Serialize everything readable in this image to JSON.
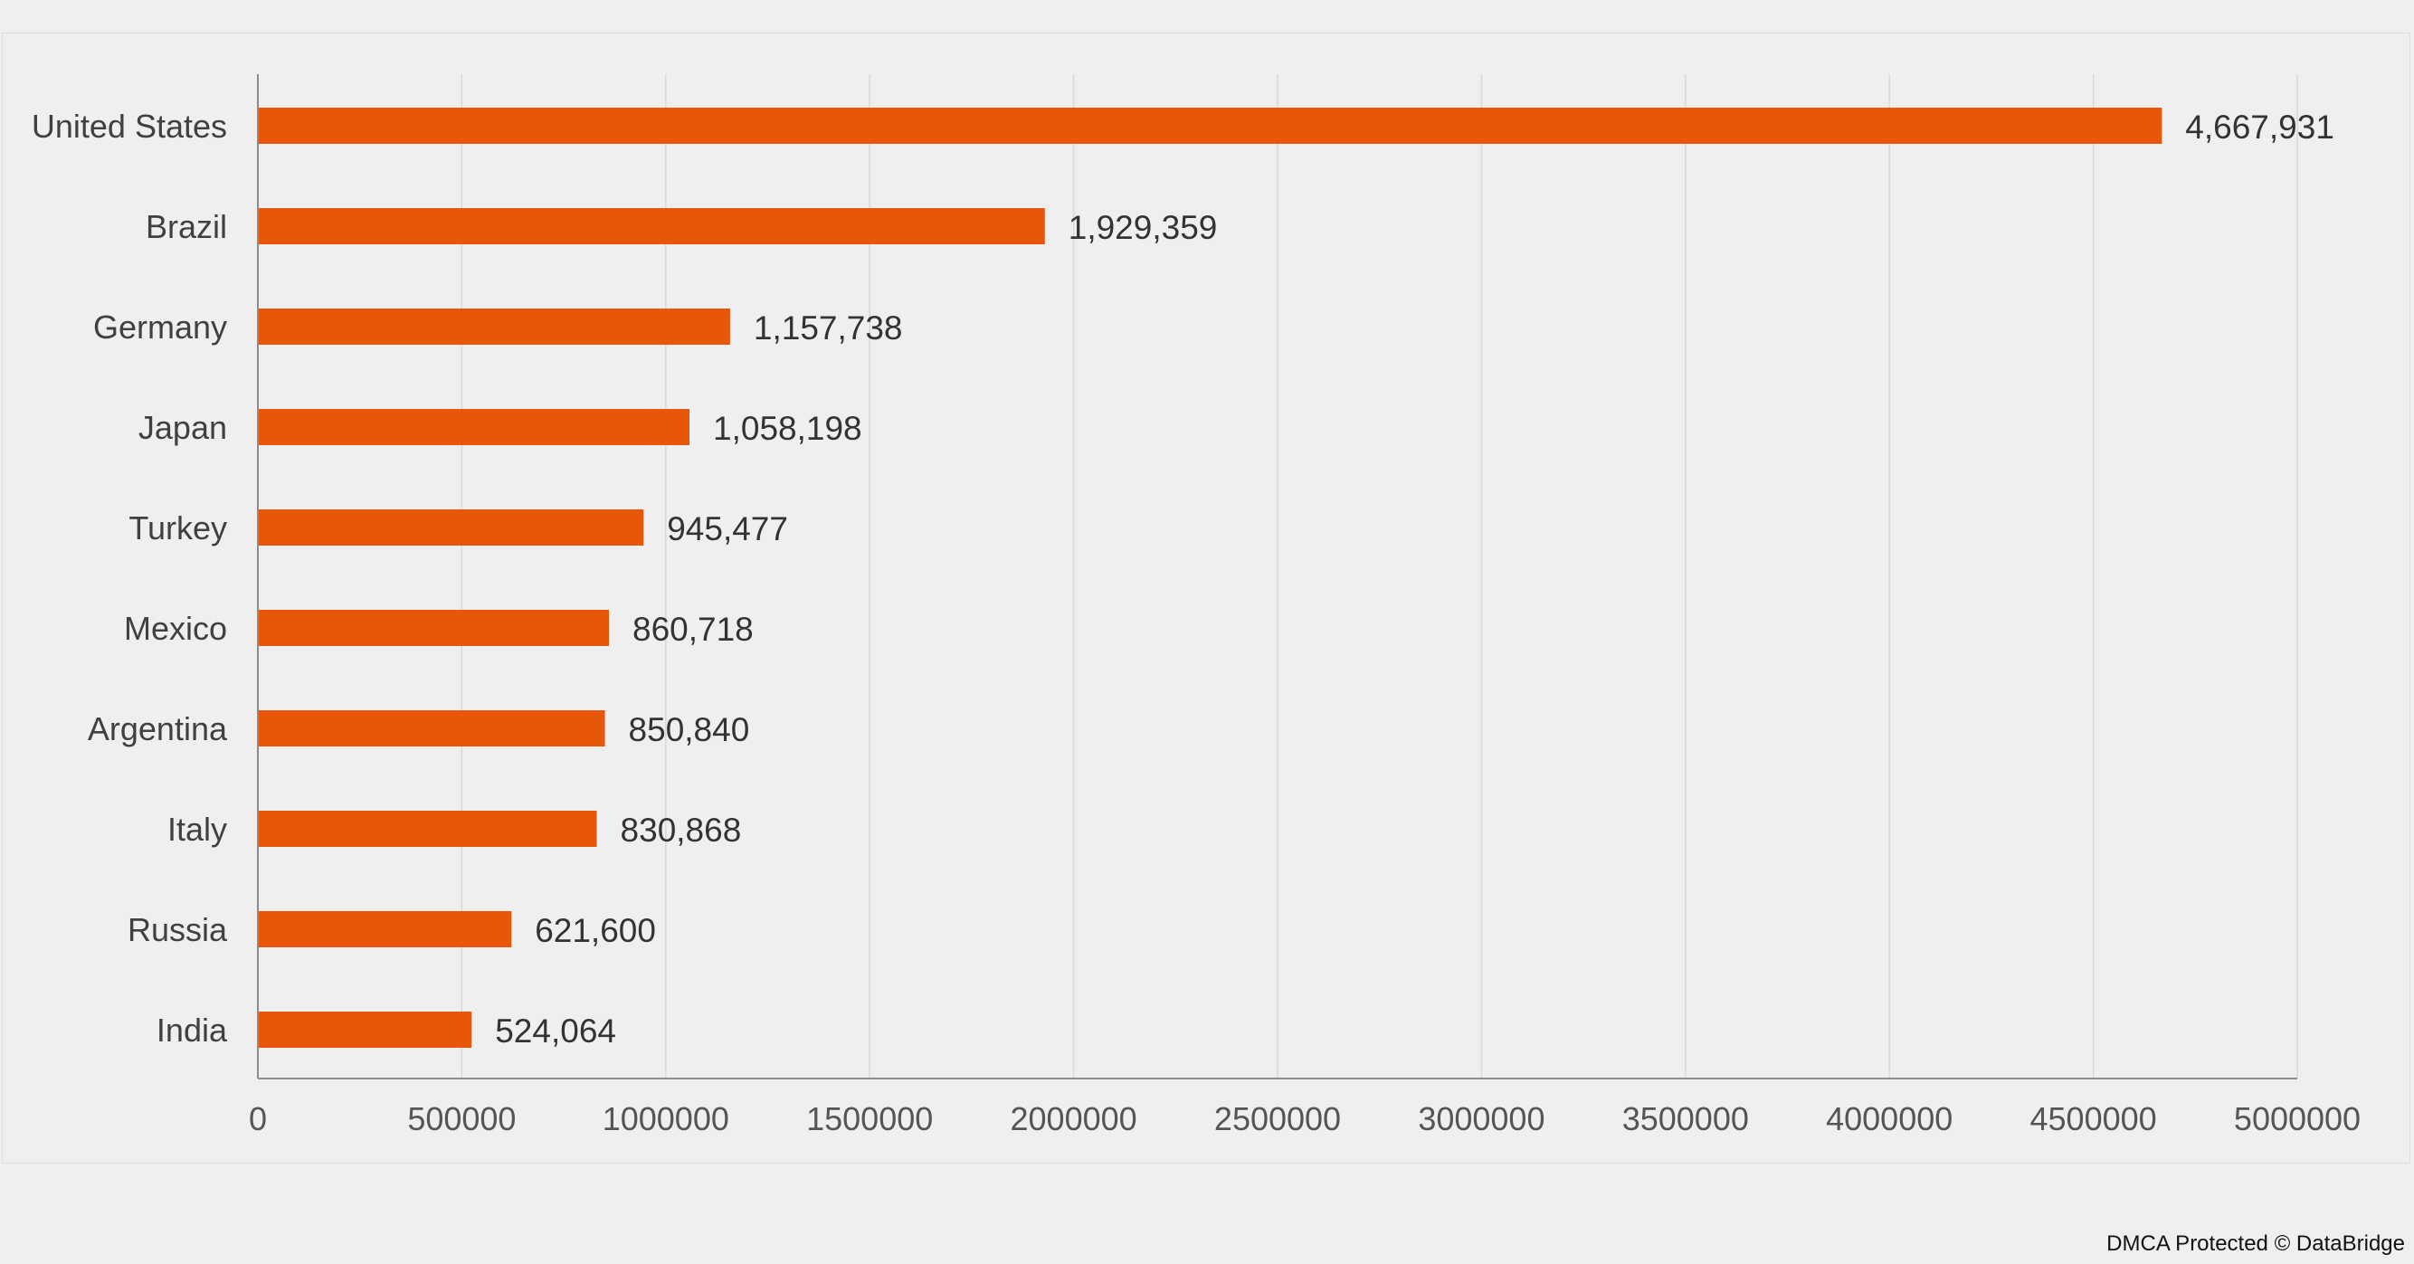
{
  "chart_data": {
    "type": "bar",
    "orientation": "horizontal",
    "categories": [
      "United States",
      "Brazil",
      "Germany",
      "Japan",
      "Turkey",
      "Mexico",
      "Argentina",
      "Italy",
      "Russia",
      "India"
    ],
    "values": [
      4667931,
      1929359,
      1157738,
      1058198,
      945477,
      860718,
      850840,
      830868,
      621600,
      524064
    ],
    "value_labels": [
      "4,667,931",
      "1,929,359",
      "1,157,738",
      "1,058,198",
      "945,477",
      "860,718",
      "850,840",
      "830,868",
      "621,600",
      "524,064"
    ],
    "xlim": [
      0,
      5000000
    ],
    "xticks": [
      0,
      500000,
      1000000,
      1500000,
      2000000,
      2500000,
      3000000,
      3500000,
      4000000,
      4500000,
      5000000
    ],
    "xtick_labels": [
      "0",
      "500000",
      "1000000",
      "1500000",
      "2000000",
      "2500000",
      "3000000",
      "3500000",
      "4000000",
      "4500000",
      "5000000"
    ],
    "grid": "vertical",
    "legend": "none",
    "bar_color": "#e8560a",
    "grid_color": "#d9d9d9",
    "axis_color": "#8c8c8c"
  },
  "watermark": "DMCA Protected © DataBridge"
}
